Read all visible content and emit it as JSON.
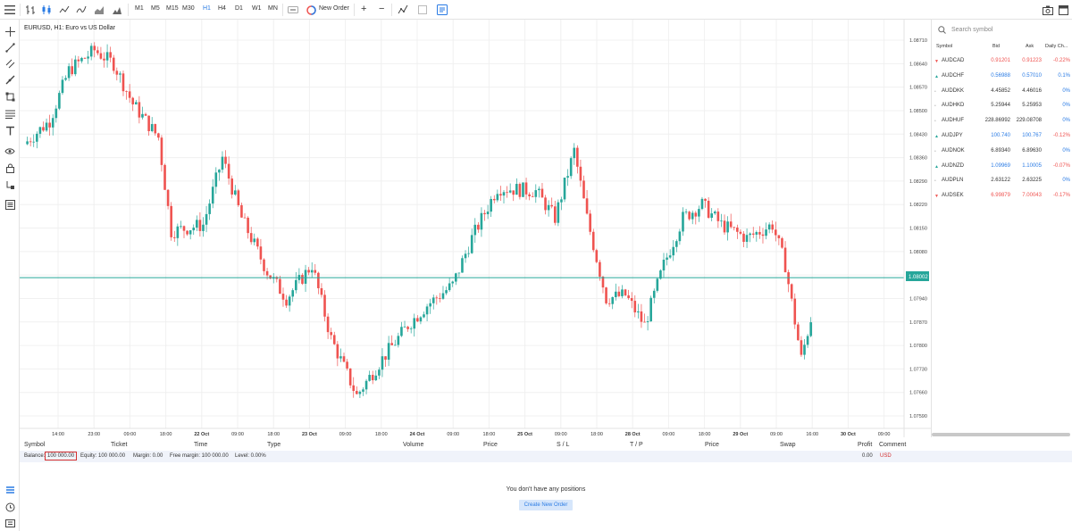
{
  "toolbar": {
    "timeframes": [
      "M1",
      "M5",
      "M15",
      "M30",
      "H1",
      "H4",
      "D1",
      "W1",
      "MN"
    ],
    "active_timeframe": "H1",
    "new_order_label": "New Order",
    "plus_label": "+",
    "minus_label": "−"
  },
  "chart": {
    "title": "EURUSD, H1: Euro vs US Dollar",
    "price_labels": [
      "1.08710",
      "1.08640",
      "1.08570",
      "1.08500",
      "1.08430",
      "1.08360",
      "1.08290",
      "1.08220",
      "1.08150",
      "1.08080",
      "1.08010",
      "1.07940",
      "1.07870",
      "1.07800",
      "1.07730",
      "1.07660",
      "1.07590"
    ],
    "current_price": "1.08002",
    "time_labels": [
      {
        "t": "14:00",
        "bold": false
      },
      {
        "t": "23:00",
        "bold": false
      },
      {
        "t": "09:00",
        "bold": false
      },
      {
        "t": "18:00",
        "bold": false
      },
      {
        "t": "22 Oct",
        "bold": true
      },
      {
        "t": "09:00",
        "bold": false
      },
      {
        "t": "18:00",
        "bold": false
      },
      {
        "t": "23 Oct",
        "bold": true
      },
      {
        "t": "09:00",
        "bold": false
      },
      {
        "t": "18:00",
        "bold": false
      },
      {
        "t": "24 Oct",
        "bold": true
      },
      {
        "t": "09:00",
        "bold": false
      },
      {
        "t": "18:00",
        "bold": false
      },
      {
        "t": "25 Oct",
        "bold": true
      },
      {
        "t": "09:00",
        "bold": false
      },
      {
        "t": "18:00",
        "bold": false
      },
      {
        "t": "28 Oct",
        "bold": true
      },
      {
        "t": "09:00",
        "bold": false
      },
      {
        "t": "18:00",
        "bold": false
      },
      {
        "t": "29 Oct",
        "bold": true
      },
      {
        "t": "09:00",
        "bold": false
      },
      {
        "t": "16:00",
        "bold": false
      },
      {
        "t": "30 Oct",
        "bold": true
      },
      {
        "t": "09:00",
        "bold": false
      }
    ],
    "colors": {
      "up": "#26a69a",
      "down": "#ef5350",
      "price_line": "#26a69a"
    }
  },
  "search": {
    "placeholder": "Search symbol"
  },
  "watchlist": {
    "headers": {
      "symbol": "Symbol",
      "bid": "Bid",
      "ask": "Ask",
      "change": "Daily Ch..."
    },
    "rows": [
      {
        "symbol": "AUDCAD",
        "bid": "0.91201",
        "ask": "0.91223",
        "change": "-0.22%",
        "dir": "down"
      },
      {
        "symbol": "AUDCHF",
        "bid": "0.56988",
        "ask": "0.57010",
        "change": "0.1%",
        "dir": "up"
      },
      {
        "symbol": "AUDDKK",
        "bid": "4.45852",
        "ask": "4.46016",
        "change": "0%",
        "dir": "flat"
      },
      {
        "symbol": "AUDHKD",
        "bid": "5.25944",
        "ask": "5.25953",
        "change": "0%",
        "dir": "flat"
      },
      {
        "symbol": "AUDHUF",
        "bid": "228.86992",
        "ask": "229.08708",
        "change": "0%",
        "dir": "flat"
      },
      {
        "symbol": "AUDJPY",
        "bid": "100.740",
        "ask": "100.767",
        "change": "-0.12%",
        "dir": "up"
      },
      {
        "symbol": "AUDNOK",
        "bid": "6.89340",
        "ask": "6.89630",
        "change": "0%",
        "dir": "flat"
      },
      {
        "symbol": "AUDNZD",
        "bid": "1.09969",
        "ask": "1.10005",
        "change": "-0.07%",
        "dir": "up"
      },
      {
        "symbol": "AUDPLN",
        "bid": "2.63122",
        "ask": "2.63225",
        "change": "0%",
        "dir": "flat"
      },
      {
        "symbol": "AUDSEK",
        "bid": "6.99879",
        "ask": "7.00043",
        "change": "-0.17%",
        "dir": "down"
      }
    ]
  },
  "positions": {
    "headers": [
      "Symbol",
      "Ticket",
      "Time",
      "Type",
      "Volume",
      "Price",
      "S / L",
      "T / P",
      "Price",
      "Swap",
      "Profit",
      "Comment"
    ],
    "balance_label": "Balance:",
    "balance_value": "100 000.00",
    "equity": "Equity: 100 000.00",
    "margin": "Margin: 0.00",
    "free_margin": "Free margin: 100 000.00",
    "level": "Level: 0.00%",
    "profit_total": "0.00",
    "currency": "USD",
    "empty_message": "You don't have any positions",
    "create_button": "Create New Order"
  }
}
